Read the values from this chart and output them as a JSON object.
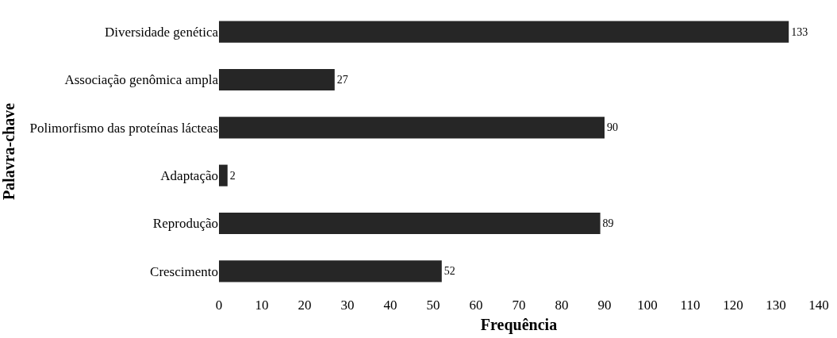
{
  "chart_data": {
    "type": "bar",
    "orientation": "horizontal",
    "xlabel": "Frequência",
    "ylabel": "Palavra-chave",
    "categories": [
      "Diversidade genética",
      "Associação genômica ampla",
      "Polimorfismo das proteínas lácteas",
      "Adaptação",
      "Reprodução",
      "Crescimento"
    ],
    "values": [
      133,
      27,
      90,
      2,
      89,
      52
    ],
    "color": "#262626",
    "data_labels": true,
    "grid": false,
    "xlim": [
      0,
      140
    ],
    "xticks": [
      0,
      10,
      20,
      30,
      40,
      50,
      60,
      70,
      80,
      90,
      100,
      110,
      120,
      130,
      140
    ]
  }
}
